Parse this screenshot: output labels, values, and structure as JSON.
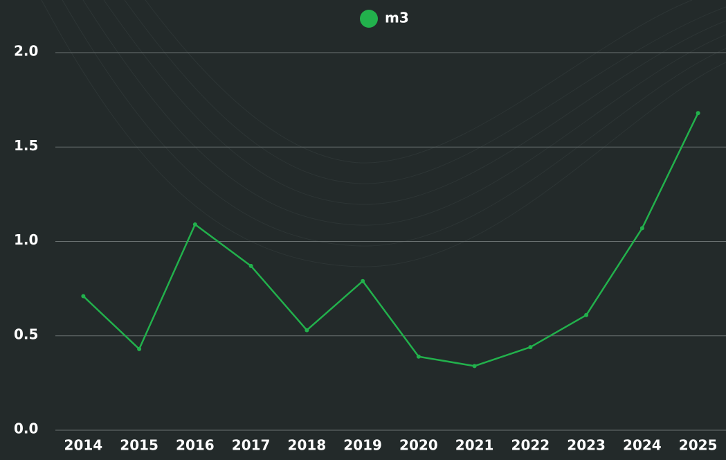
{
  "chart_data": {
    "type": "line",
    "legend": "top",
    "categories": [
      "2014",
      "2015",
      "2016",
      "2017",
      "2018",
      "2019",
      "2020",
      "2021",
      "2022",
      "2023",
      "2024",
      "2025"
    ],
    "series": [
      {
        "name": "m3",
        "color": "#22b14c",
        "values": [
          0.71,
          0.43,
          1.09,
          0.87,
          0.53,
          0.79,
          0.39,
          0.34,
          0.44,
          0.61,
          1.07,
          1.68
        ]
      }
    ],
    "ylim": [
      0,
      2
    ],
    "yticks": [
      {
        "value": 0,
        "label": "0.0"
      },
      0.5,
      {
        "value": 1,
        "label": "1.0"
      },
      1.5,
      {
        "value": 2,
        "label": "2.0"
      }
    ],
    "grid": true
  }
}
